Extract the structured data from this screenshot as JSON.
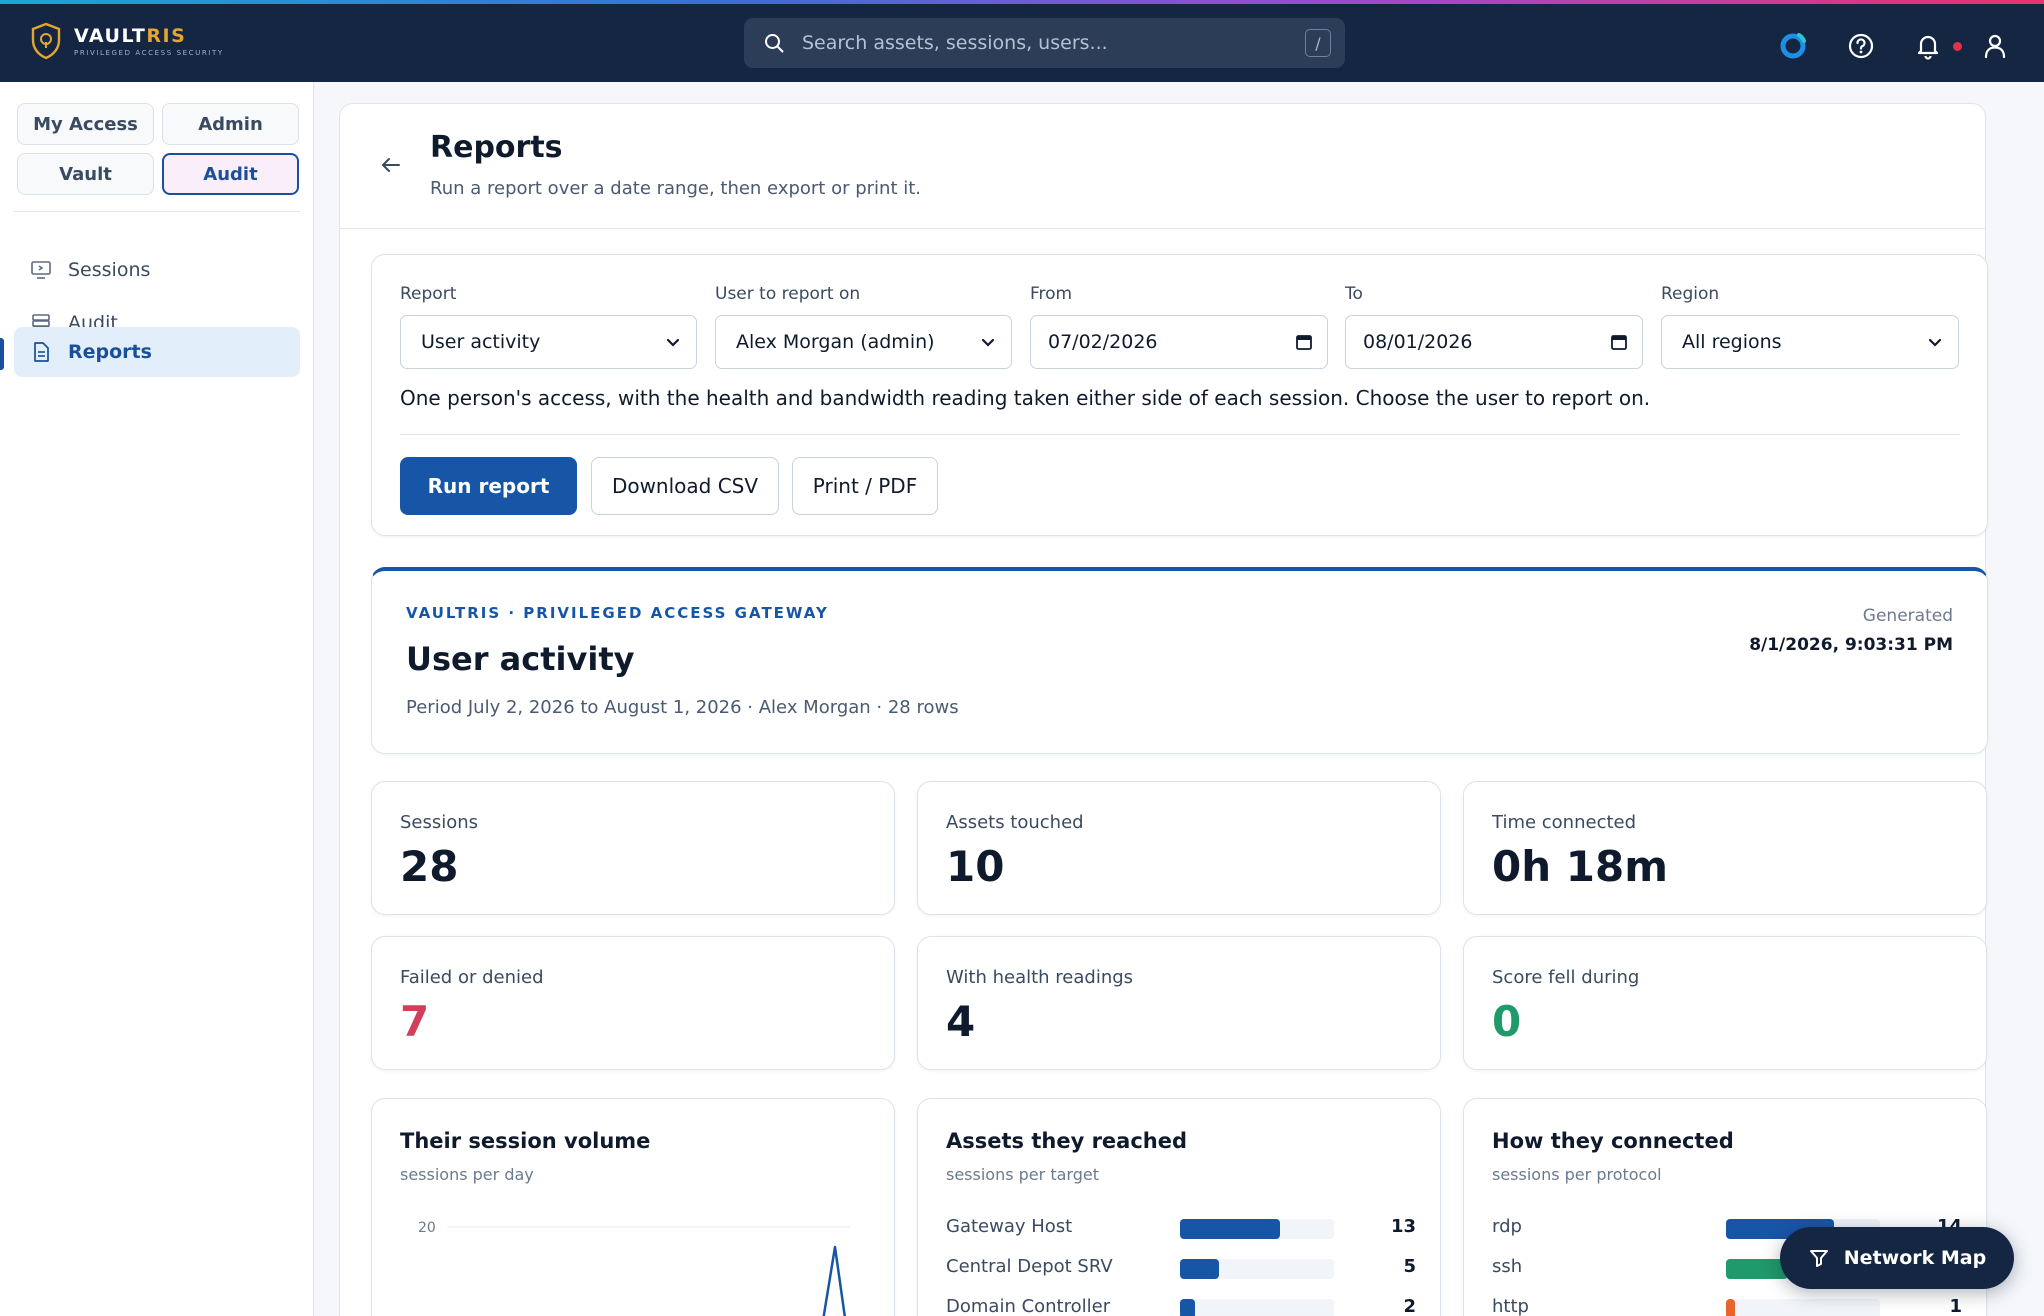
{
  "brand": {
    "name_part1": "VAULT",
    "name_part2": "RIS",
    "tagline": "PRIVILEGED ACCESS SECURITY"
  },
  "search": {
    "placeholder": "Search assets, sessions, users...",
    "shortcut": "/"
  },
  "header_icons": [
    "sync-status-icon",
    "help-icon",
    "bell-icon",
    "user-icon"
  ],
  "sidebar": {
    "modes": [
      {
        "label": "My Access",
        "active": false
      },
      {
        "label": "Admin",
        "active": false
      },
      {
        "label": "Vault",
        "active": false
      },
      {
        "label": "Audit",
        "active": true
      }
    ],
    "items": [
      {
        "label": "Sessions",
        "icon": "monitor-icon",
        "active": false
      },
      {
        "label": "Audit",
        "icon": "database-icon",
        "active": false
      },
      {
        "label": "Reports",
        "icon": "document-icon",
        "active": true
      }
    ]
  },
  "page": {
    "title": "Reports",
    "subtitle": "Run a report over a date range, then export or print it."
  },
  "form": {
    "report": {
      "label": "Report",
      "value": "User activity"
    },
    "user": {
      "label": "User to report on",
      "value": "Alex Morgan (admin)"
    },
    "from": {
      "label": "From",
      "value": "07/02/2026"
    },
    "to": {
      "label": "To",
      "value": "08/01/2026"
    },
    "region": {
      "label": "Region",
      "value": "All regions"
    },
    "description": "One person's access, with the health and bandwidth reading taken either side of each session. Choose the user to report on.",
    "run_label": "Run report",
    "csv_label": "Download CSV",
    "print_label": "Print / PDF"
  },
  "summary": {
    "eyebrow": "VAULTRIS · PRIVILEGED ACCESS GATEWAY",
    "title": "User activity",
    "period": "Period July 2, 2026 to August 1, 2026 · Alex Morgan · 28 rows",
    "generated_label": "Generated",
    "generated_value": "8/1/2026, 9:03:31 PM"
  },
  "stats": [
    {
      "label": "Sessions",
      "value": "28",
      "tone": "default"
    },
    {
      "label": "Assets touched",
      "value": "10",
      "tone": "default"
    },
    {
      "label": "Time connected",
      "value": "0h 18m",
      "tone": "default"
    },
    {
      "label": "Failed or denied",
      "value": "7",
      "tone": "red"
    },
    {
      "label": "With health readings",
      "value": "4",
      "tone": "default"
    },
    {
      "label": "Score fell during",
      "value": "0",
      "tone": "green"
    }
  ],
  "panels": {
    "volume": {
      "title": "Their session volume",
      "subtitle": "sessions per day",
      "tick": "20"
    },
    "assets": {
      "title": "Assets they reached",
      "subtitle": "sessions per target",
      "max": 20,
      "rows": [
        {
          "label": "Gateway Host",
          "value": 13,
          "display": "13"
        },
        {
          "label": "Central Depot SRV",
          "value": 5,
          "display": "5"
        },
        {
          "label": "Domain Controller",
          "value": 2,
          "display": "2"
        }
      ]
    },
    "protocols": {
      "title": "How they connected",
      "subtitle": "sessions per protocol",
      "max": 20,
      "rows": [
        {
          "label": "rdp",
          "value": 14,
          "display": "14",
          "color": "#1755a6"
        },
        {
          "label": "ssh",
          "value": 8,
          "display": "8",
          "color": "#1f9a6a"
        },
        {
          "label": "http",
          "value": 1,
          "display": "1",
          "color": "#e8642a"
        }
      ]
    }
  },
  "fab": {
    "label": "Network Map"
  },
  "colors": {
    "navy": "#142642",
    "primary": "#1755a6",
    "danger": "#d13f5b",
    "success": "#1f9a6a",
    "gold": "#e3a62f"
  }
}
